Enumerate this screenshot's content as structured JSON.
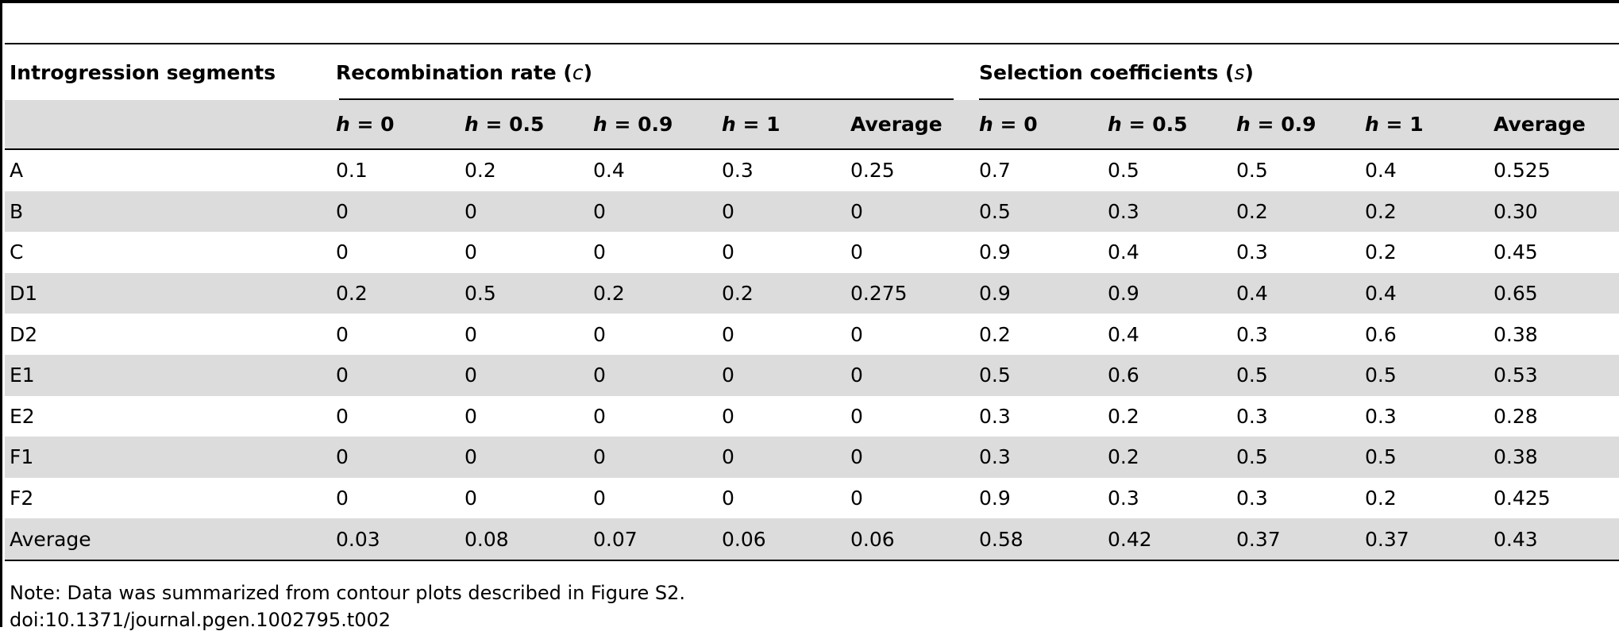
{
  "table": {
    "row_header": "Introgression segments",
    "groups": [
      {
        "name": "Recombination rate (",
        "symbol": "c",
        "close": ")"
      },
      {
        "name": "Selection coefficients (",
        "symbol": "s",
        "close": ")"
      }
    ],
    "subheaders": [
      {
        "var": "h",
        "eq": " = 0"
      },
      {
        "var": "h",
        "eq": " = 0.5"
      },
      {
        "var": "h",
        "eq": " = 0.9"
      },
      {
        "var": "h",
        "eq": " = 1"
      },
      {
        "var": "",
        "eq": "Average"
      },
      {
        "var": "h",
        "eq": " = 0"
      },
      {
        "var": "h",
        "eq": " = 0.5"
      },
      {
        "var": "h",
        "eq": " = 0.9"
      },
      {
        "var": "h",
        "eq": " = 1"
      },
      {
        "var": "",
        "eq": "Average"
      }
    ],
    "rows": [
      {
        "label": "A",
        "values": [
          "0.1",
          "0.2",
          "0.4",
          "0.3",
          "0.25",
          "0.7",
          "0.5",
          "0.5",
          "0.4",
          "0.525"
        ]
      },
      {
        "label": "B",
        "values": [
          "0",
          "0",
          "0",
          "0",
          "0",
          "0.5",
          "0.3",
          "0.2",
          "0.2",
          "0.30"
        ]
      },
      {
        "label": "C",
        "values": [
          "0",
          "0",
          "0",
          "0",
          "0",
          "0.9",
          "0.4",
          "0.3",
          "0.2",
          "0.45"
        ]
      },
      {
        "label": "D1",
        "values": [
          "0.2",
          "0.5",
          "0.2",
          "0.2",
          "0.275",
          "0.9",
          "0.9",
          "0.4",
          "0.4",
          "0.65"
        ]
      },
      {
        "label": "D2",
        "values": [
          "0",
          "0",
          "0",
          "0",
          "0",
          "0.2",
          "0.4",
          "0.3",
          "0.6",
          "0.38"
        ]
      },
      {
        "label": "E1",
        "values": [
          "0",
          "0",
          "0",
          "0",
          "0",
          "0.5",
          "0.6",
          "0.5",
          "0.5",
          "0.53"
        ]
      },
      {
        "label": "E2",
        "values": [
          "0",
          "0",
          "0",
          "0",
          "0",
          "0.3",
          "0.2",
          "0.3",
          "0.3",
          "0.28"
        ]
      },
      {
        "label": "F1",
        "values": [
          "0",
          "0",
          "0",
          "0",
          "0",
          "0.3",
          "0.2",
          "0.5",
          "0.5",
          "0.38"
        ]
      },
      {
        "label": "F2",
        "values": [
          "0",
          "0",
          "0",
          "0",
          "0",
          "0.9",
          "0.3",
          "0.3",
          "0.2",
          "0.425"
        ]
      },
      {
        "label": "Average",
        "values": [
          "0.03",
          "0.08",
          "0.07",
          "0.06",
          "0.06",
          "0.58",
          "0.42",
          "0.37",
          "0.37",
          "0.43"
        ]
      }
    ]
  },
  "footer": {
    "note": "Note: Data was summarized from contour plots described in Figure S2.",
    "doi": "doi:10.1371/journal.pgen.1002795.t002"
  }
}
